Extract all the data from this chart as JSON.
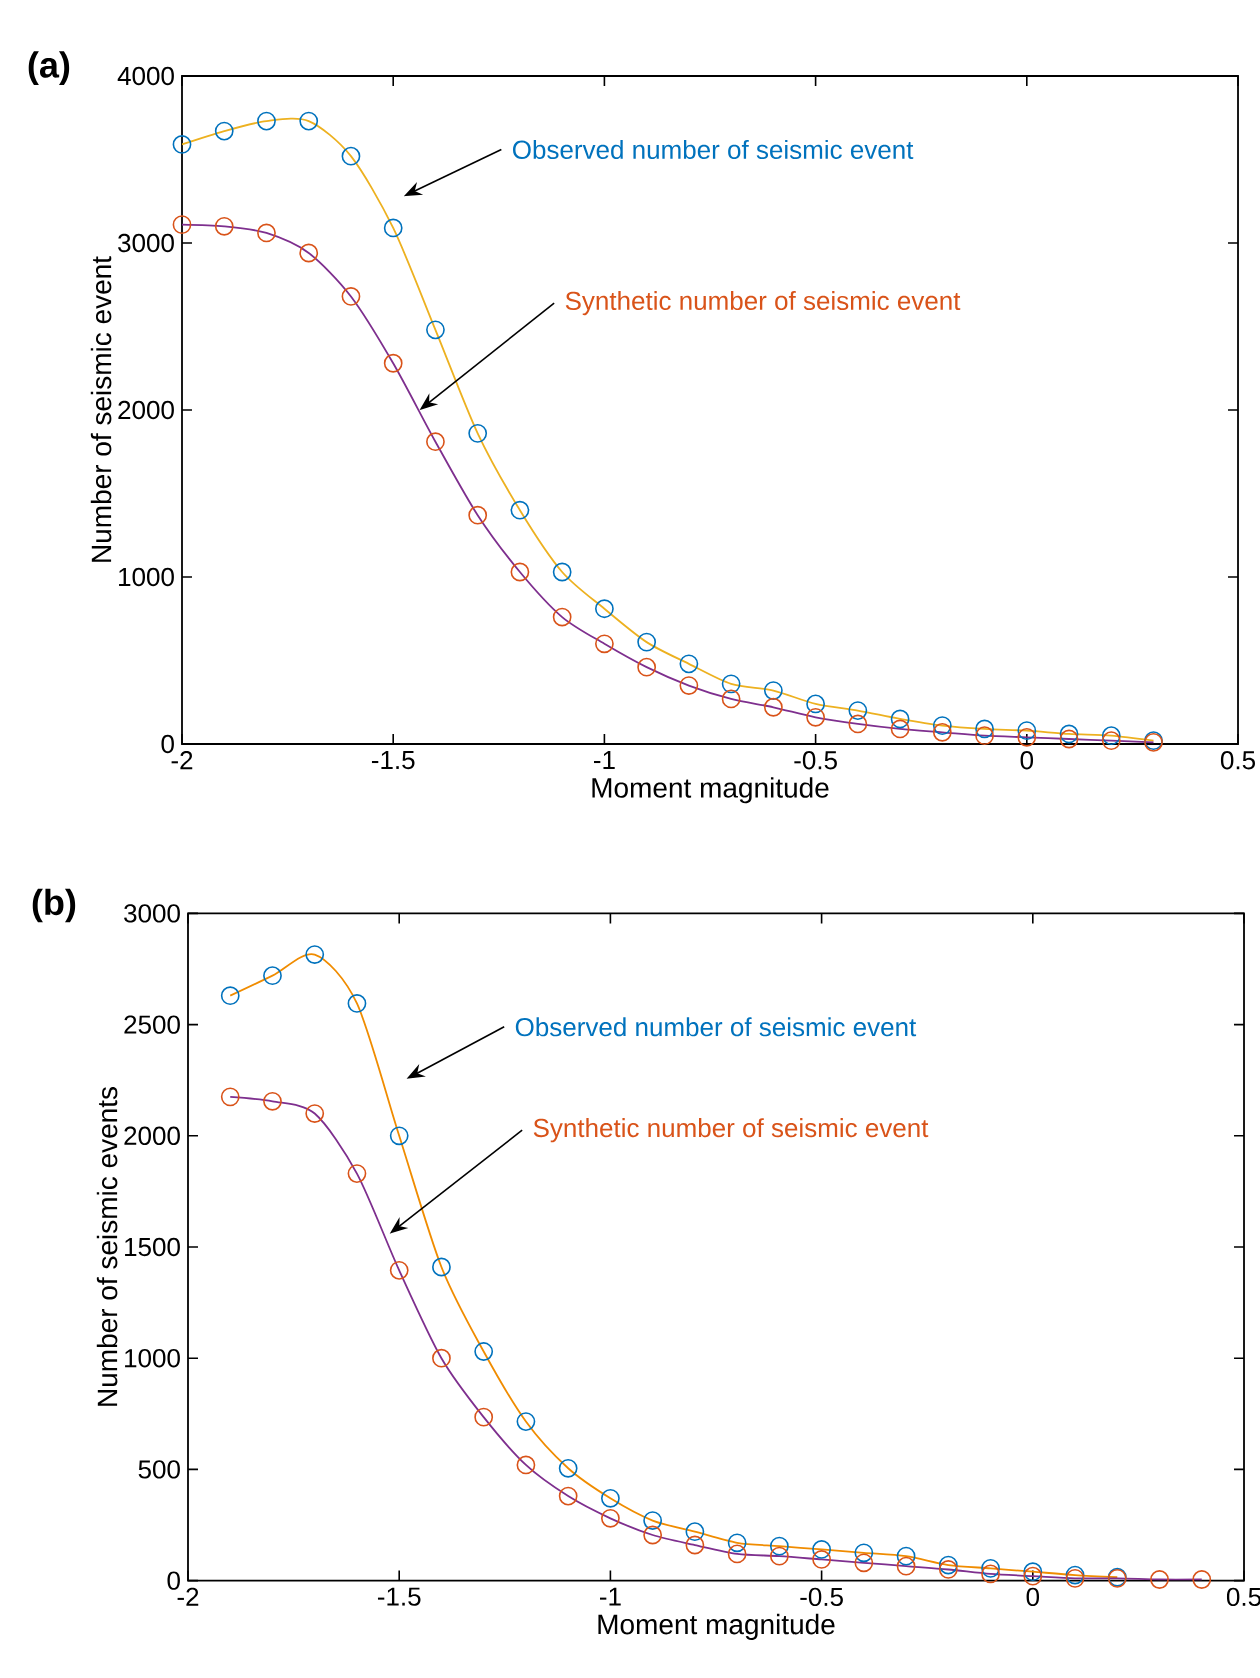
{
  "chart_data": [
    {
      "type": "line",
      "title": "(a)",
      "xlabel": "Moment magnitude",
      "ylabel": "Number of seismic event",
      "x": [
        -2,
        -1.9,
        -1.8,
        -1.7,
        -1.6,
        -1.5,
        -1.4,
        -1.3,
        -1.2,
        -1.1,
        -1.0,
        -0.9,
        -0.8,
        -0.7,
        -0.6,
        -0.5,
        -0.4,
        -0.3,
        -0.2,
        -0.1,
        0,
        0.1,
        0.2,
        0.3
      ],
      "xlim": [
        -2,
        0.5
      ],
      "xticks": [
        -2,
        -1.5,
        -1,
        -0.5,
        0,
        0.5
      ],
      "ylim": [
        0,
        4000
      ],
      "yticks": [
        0,
        1000,
        2000,
        3000,
        4000
      ],
      "series": [
        {
          "color": "#edb120",
          "values": [
            3590,
            3670,
            3730,
            3730,
            3520,
            3090,
            2480,
            1860,
            1400,
            1030,
            810,
            610,
            480,
            360,
            320,
            240,
            200,
            150,
            110,
            90,
            80,
            60,
            50,
            20
          ]
        },
        {
          "color": "#7e2f8e",
          "values": [
            3110,
            3100,
            3060,
            2940,
            2680,
            2280,
            1810,
            1370,
            1030,
            760,
            600,
            460,
            350,
            270,
            220,
            160,
            120,
            90,
            70,
            50,
            40,
            30,
            20,
            10
          ]
        },
        {
          "type": "scatter",
          "marker": "circle",
          "name": "Observed number of seismic event",
          "color": "#0072bd",
          "values": [
            3590,
            3670,
            3730,
            3730,
            3520,
            3090,
            2480,
            1860,
            1400,
            1030,
            810,
            610,
            480,
            360,
            320,
            240,
            200,
            150,
            110,
            90,
            80,
            60,
            50,
            20
          ]
        },
        {
          "type": "scatter",
          "marker": "circle",
          "name": "Synthetic number of seismic event",
          "color": "#d95319",
          "values": [
            3110,
            3100,
            3060,
            2940,
            2680,
            2280,
            1810,
            1370,
            1030,
            760,
            600,
            460,
            350,
            270,
            220,
            160,
            120,
            90,
            70,
            50,
            40,
            30,
            20,
            10
          ]
        }
      ]
    },
    {
      "type": "line",
      "title": "(b)",
      "xlabel": "Moment magnitude",
      "ylabel": "Number of seismic events",
      "x": [
        -1.9,
        -1.8,
        -1.7,
        -1.6,
        -1.5,
        -1.4,
        -1.3,
        -1.2,
        -1.1,
        -1.0,
        -0.9,
        -0.8,
        -0.7,
        -0.6,
        -0.5,
        -0.4,
        -0.3,
        -0.2,
        -0.1,
        0,
        0.1,
        0.2,
        0.3,
        0.4
      ],
      "xlim": [
        -2,
        0.5
      ],
      "xticks": [
        -2,
        -1.5,
        -1,
        -0.5,
        0,
        0.5
      ],
      "ylim": [
        0,
        3000
      ],
      "yticks": [
        0,
        500,
        1000,
        1500,
        2000,
        2500,
        3000
      ],
      "series": [
        {
          "color": "#f08c00",
          "values": [
            2630,
            2720,
            2815,
            2595,
            2000,
            1410,
            1030,
            715,
            505,
            370,
            270,
            220,
            170,
            155,
            140,
            125,
            110,
            70,
            55,
            40,
            25,
            15,
            null,
            null
          ]
        },
        {
          "color": "#7e2f8e",
          "values": [
            2175,
            2155,
            2100,
            1830,
            1395,
            1000,
            735,
            520,
            380,
            280,
            205,
            160,
            120,
            110,
            95,
            80,
            65,
            50,
            30,
            20,
            10,
            10,
            5,
            5
          ]
        },
        {
          "type": "scatter",
          "marker": "circle",
          "name": "Observed number of seismic event",
          "color": "#0072bd",
          "values": [
            2630,
            2720,
            2815,
            2595,
            2000,
            1410,
            1030,
            715,
            505,
            370,
            270,
            220,
            170,
            155,
            140,
            125,
            110,
            70,
            55,
            40,
            25,
            15,
            null,
            null
          ]
        },
        {
          "type": "scatter",
          "marker": "circle",
          "name": "Synthetic number of seismic event",
          "color": "#d95319",
          "values": [
            2175,
            2155,
            2100,
            1830,
            1395,
            1000,
            735,
            520,
            380,
            280,
            205,
            160,
            120,
            110,
            95,
            80,
            65,
            50,
            30,
            20,
            10,
            10,
            5,
            5
          ]
        }
      ]
    }
  ]
}
